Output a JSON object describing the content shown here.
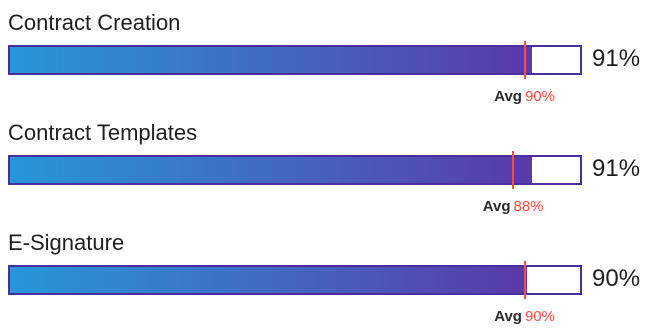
{
  "chart_data": {
    "type": "bar",
    "orientation": "horizontal",
    "xlim": [
      0,
      100
    ],
    "unit": "%",
    "categories": [
      "Contract Creation",
      "Contract Templates",
      "E-Signature"
    ],
    "values": [
      91,
      91,
      90
    ],
    "averages": [
      90,
      88,
      90
    ],
    "value_labels": [
      "91%",
      "91%",
      "90%"
    ],
    "average_labels": [
      "90%",
      "88%",
      "90%"
    ],
    "average_word": "Avg",
    "legend": "none",
    "grid": false
  },
  "colors": {
    "gradient_start": "#2697d9",
    "gradient_end": "#5a3aa8",
    "track_border": "#4a2e9e",
    "average_marker": "#ff4d3d"
  }
}
